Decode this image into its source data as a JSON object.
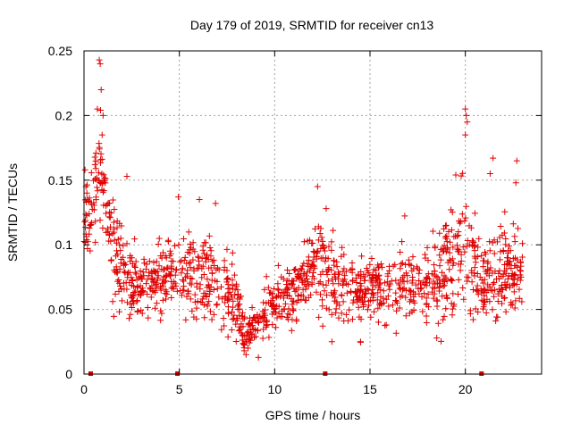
{
  "chart_data": {
    "type": "scatter",
    "title": "Day 179 of 2019, SRMTID for receiver cn13",
    "xlabel": "GPS time / hours",
    "ylabel": "SRMTID / TECUs",
    "xlim": [
      0,
      24
    ],
    "ylim": [
      0,
      0.25
    ],
    "x_ticks": [
      0,
      5,
      10,
      15,
      20
    ],
    "x_tick_labels": [
      "0",
      "5",
      "10",
      "15",
      "20"
    ],
    "y_ticks": [
      0,
      0.05,
      0.1,
      0.15,
      0.2,
      0.25
    ],
    "y_tick_labels": [
      "0",
      "0.05",
      "0.1",
      "0.15",
      "0.2",
      "0.25"
    ],
    "grid": true,
    "marker": "plus",
    "color": "#e00000",
    "baseline_markers_x": [
      0.35,
      4.9,
      12.65,
      20.85
    ],
    "series": [
      {
        "name": "SRMTID",
        "envelope": [
          {
            "x": 0.0,
            "mean": 0.12,
            "spread": 0.03
          },
          {
            "x": 0.5,
            "mean": 0.13,
            "spread": 0.04
          },
          {
            "x": 0.8,
            "mean": 0.17,
            "spread": 0.05
          },
          {
            "x": 1.0,
            "mean": 0.14,
            "spread": 0.05
          },
          {
            "x": 1.5,
            "mean": 0.1,
            "spread": 0.04
          },
          {
            "x": 2.0,
            "mean": 0.08,
            "spread": 0.03
          },
          {
            "x": 3.0,
            "mean": 0.065,
            "spread": 0.025
          },
          {
            "x": 4.0,
            "mean": 0.075,
            "spread": 0.025
          },
          {
            "x": 5.0,
            "mean": 0.08,
            "spread": 0.03
          },
          {
            "x": 6.0,
            "mean": 0.075,
            "spread": 0.03
          },
          {
            "x": 7.0,
            "mean": 0.07,
            "spread": 0.03
          },
          {
            "x": 8.0,
            "mean": 0.05,
            "spread": 0.02
          },
          {
            "x": 8.5,
            "mean": 0.03,
            "spread": 0.012
          },
          {
            "x": 9.0,
            "mean": 0.04,
            "spread": 0.015
          },
          {
            "x": 10.0,
            "mean": 0.055,
            "spread": 0.02
          },
          {
            "x": 11.0,
            "mean": 0.06,
            "spread": 0.02
          },
          {
            "x": 12.0,
            "mean": 0.085,
            "spread": 0.03
          },
          {
            "x": 13.0,
            "mean": 0.075,
            "spread": 0.025
          },
          {
            "x": 14.0,
            "mean": 0.065,
            "spread": 0.022
          },
          {
            "x": 15.0,
            "mean": 0.065,
            "spread": 0.022
          },
          {
            "x": 16.0,
            "mean": 0.07,
            "spread": 0.025
          },
          {
            "x": 17.0,
            "mean": 0.07,
            "spread": 0.025
          },
          {
            "x": 18.0,
            "mean": 0.065,
            "spread": 0.025
          },
          {
            "x": 19.0,
            "mean": 0.08,
            "spread": 0.035
          },
          {
            "x": 19.5,
            "mean": 0.09,
            "spread": 0.04
          },
          {
            "x": 20.0,
            "mean": 0.1,
            "spread": 0.045
          },
          {
            "x": 20.5,
            "mean": 0.075,
            "spread": 0.03
          },
          {
            "x": 21.0,
            "mean": 0.07,
            "spread": 0.03
          },
          {
            "x": 22.0,
            "mean": 0.08,
            "spread": 0.035
          },
          {
            "x": 23.0,
            "mean": 0.08,
            "spread": 0.03
          }
        ],
        "sample_count": 1400,
        "highlights": [
          {
            "x": 0.8,
            "y": 0.243
          },
          {
            "x": 0.85,
            "y": 0.24
          },
          {
            "x": 0.9,
            "y": 0.22
          },
          {
            "x": 1.0,
            "y": 0.2
          },
          {
            "x": 0.7,
            "y": 0.205
          },
          {
            "x": 0.95,
            "y": 0.185
          },
          {
            "x": 0.05,
            "y": 0.158
          },
          {
            "x": 0.1,
            "y": 0.145
          },
          {
            "x": 0.15,
            "y": 0.14
          },
          {
            "x": 2.25,
            "y": 0.153
          },
          {
            "x": 4.95,
            "y": 0.137
          },
          {
            "x": 6.05,
            "y": 0.135
          },
          {
            "x": 6.9,
            "y": 0.132
          },
          {
            "x": 12.25,
            "y": 0.145
          },
          {
            "x": 12.7,
            "y": 0.128
          },
          {
            "x": 19.5,
            "y": 0.154
          },
          {
            "x": 20.0,
            "y": 0.205
          },
          {
            "x": 20.05,
            "y": 0.2
          },
          {
            "x": 20.1,
            "y": 0.195
          },
          {
            "x": 20.0,
            "y": 0.185
          },
          {
            "x": 21.45,
            "y": 0.167
          },
          {
            "x": 22.7,
            "y": 0.165
          },
          {
            "x": 22.65,
            "y": 0.148
          },
          {
            "x": 21.3,
            "y": 0.155
          },
          {
            "x": 8.5,
            "y": 0.015
          },
          {
            "x": 8.4,
            "y": 0.018
          },
          {
            "x": 8.6,
            "y": 0.02
          },
          {
            "x": 13.0,
            "y": 0.025
          },
          {
            "x": 14.5,
            "y": 0.025
          },
          {
            "x": 18.5,
            "y": 0.028
          }
        ]
      }
    ]
  }
}
